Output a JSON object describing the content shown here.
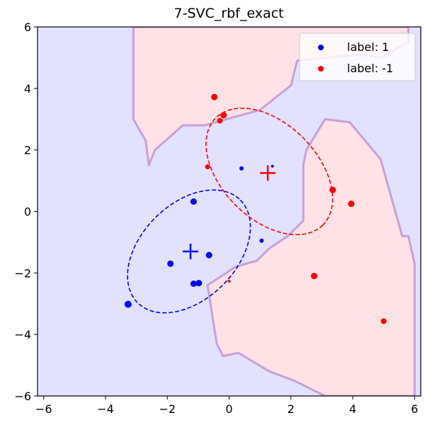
{
  "chart_data": {
    "type": "scatter",
    "title": "7-SVC_rbf_exact",
    "xlabel": "",
    "ylabel": "",
    "xlim": [
      -6.2,
      6.2
    ],
    "ylim": [
      -6,
      6
    ],
    "xticks": [
      -6,
      -4,
      -2,
      0,
      2,
      4,
      6
    ],
    "yticks": [
      -6,
      -4,
      -2,
      0,
      2,
      4,
      6
    ],
    "xtick_labels": [
      "−6",
      "−4",
      "−2",
      "0",
      "2",
      "4",
      "6"
    ],
    "ytick_labels": [
      "−6",
      "−4",
      "−2",
      "0",
      "2",
      "4",
      "6"
    ],
    "grid": false,
    "legend": {
      "placement": "top-right",
      "entries": [
        {
          "label": "label: 1",
          "color": "#0000ff"
        },
        {
          "label": "label: -1",
          "color": "#ff0000"
        }
      ]
    },
    "background": {
      "label_1_region_color": "#e2e2ff",
      "label_neg1_region_color": "#ffe2e6",
      "boundary_color": "#c8a0d8",
      "label_neg1_regions": [
        [
          [
            -3.1,
            6
          ],
          [
            5.8,
            6
          ],
          [
            5.8,
            5.5
          ],
          [
            4.9,
            5.0
          ],
          [
            4.2,
            5.1
          ],
          [
            2.2,
            4.9
          ],
          [
            2.0,
            4.1
          ],
          [
            1.0,
            3.3
          ],
          [
            -0.8,
            2.8
          ],
          [
            -1.5,
            2.8
          ],
          [
            -2.4,
            2.0
          ],
          [
            -2.6,
            1.5
          ],
          [
            -2.7,
            2.3
          ],
          [
            -3.1,
            3.0
          ],
          [
            -3.1,
            6
          ]
        ],
        [
          [
            6.0,
            -6
          ],
          [
            6.0,
            -1.7
          ],
          [
            5.8,
            -0.8
          ],
          [
            5.6,
            -0.8
          ],
          [
            4.9,
            1.7
          ],
          [
            3.9,
            2.9
          ],
          [
            3.1,
            3.0
          ],
          [
            2.5,
            2.0
          ],
          [
            2.4,
            1.5
          ],
          [
            2.4,
            -0.3
          ],
          [
            1.9,
            -0.8
          ],
          [
            1.3,
            -1.2
          ],
          [
            0.9,
            -1.6
          ],
          [
            0.2,
            -1.8
          ],
          [
            -0.7,
            -2.4
          ],
          [
            -0.4,
            -4.3
          ],
          [
            -0.2,
            -4.7
          ],
          [
            0.3,
            -4.6
          ],
          [
            1.3,
            -5.2
          ],
          [
            2.1,
            -5.5
          ],
          [
            2.7,
            -5.8
          ],
          [
            3.1,
            -6
          ],
          [
            6.0,
            -6
          ]
        ]
      ]
    },
    "series": [
      {
        "name": "label: 1",
        "color": "#0000ff",
        "points": [
          {
            "x": -1.15,
            "y": 0.32,
            "r": 4.5
          },
          {
            "x": -1.9,
            "y": -1.7,
            "r": 4.5
          },
          {
            "x": -0.65,
            "y": -1.42,
            "r": 4.5
          },
          {
            "x": -1.15,
            "y": -2.35,
            "r": 4.5
          },
          {
            "x": -0.98,
            "y": -2.33,
            "r": 4.5
          },
          {
            "x": -3.27,
            "y": -3.02,
            "r": 5
          },
          {
            "x": 0.4,
            "y": 1.4,
            "r": 3
          },
          {
            "x": 1.4,
            "y": 1.47,
            "r": 2
          },
          {
            "x": 1.05,
            "y": -0.95,
            "r": 3
          }
        ],
        "mean": {
          "x": -1.25,
          "y": -1.3
        },
        "ellipse": {
          "cx": -1.3,
          "cy": -1.3,
          "rx": 2.35,
          "ry": 1.55,
          "angle_deg": 45
        }
      },
      {
        "name": "label: -1",
        "color": "#ff0000",
        "points": [
          {
            "x": -0.48,
            "y": 3.72,
            "r": 4.5
          },
          {
            "x": -0.18,
            "y": 3.13,
            "r": 4.5
          },
          {
            "x": -0.3,
            "y": 2.95,
            "r": 4
          },
          {
            "x": -0.7,
            "y": 1.45,
            "r": 3.5
          },
          {
            "x": 3.35,
            "y": 0.7,
            "r": 4.5
          },
          {
            "x": 3.95,
            "y": 0.25,
            "r": 4.5
          },
          {
            "x": 2.75,
            "y": -2.1,
            "r": 4.5
          },
          {
            "x": 5.0,
            "y": -3.57,
            "r": 4
          },
          {
            "x": 0.0,
            "y": -2.27,
            "r": 2
          }
        ],
        "mean": {
          "x": 1.25,
          "y": 1.25
        },
        "ellipse": {
          "cx": 1.3,
          "cy": 1.3,
          "rx": 2.45,
          "ry": 1.55,
          "angle_deg": -45
        }
      }
    ]
  }
}
